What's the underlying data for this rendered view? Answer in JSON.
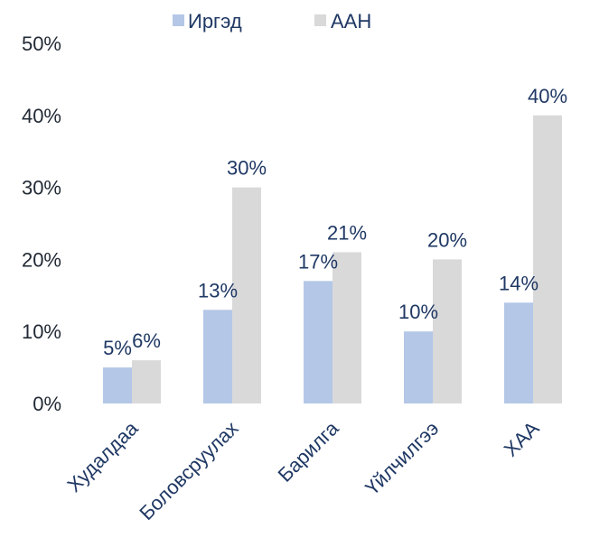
{
  "chart_data": {
    "type": "bar",
    "categories": [
      "Худалдаа",
      "Боловсруулах",
      "Барилга",
      "Үйлчилгээ",
      "ХАА"
    ],
    "series": [
      {
        "name": "Иргэд",
        "values": [
          5,
          13,
          17,
          10,
          14
        ],
        "labels": [
          "5%",
          "13%",
          "17%",
          "10%",
          "14%"
        ],
        "color": "#b4c7e7"
      },
      {
        "name": "ААН",
        "values": [
          6,
          30,
          21,
          20,
          40
        ],
        "labels": [
          "6%",
          "30%",
          "21%",
          "20%",
          "40%"
        ],
        "color": "#d9d9d9"
      }
    ],
    "ylim": [
      0,
      50
    ],
    "yticks": [
      0,
      10,
      20,
      30,
      40,
      50
    ],
    "ytick_labels": [
      "0%",
      "10%",
      "20%",
      "30%",
      "40%",
      "50%"
    ],
    "grid": false,
    "legend_position": "top"
  }
}
